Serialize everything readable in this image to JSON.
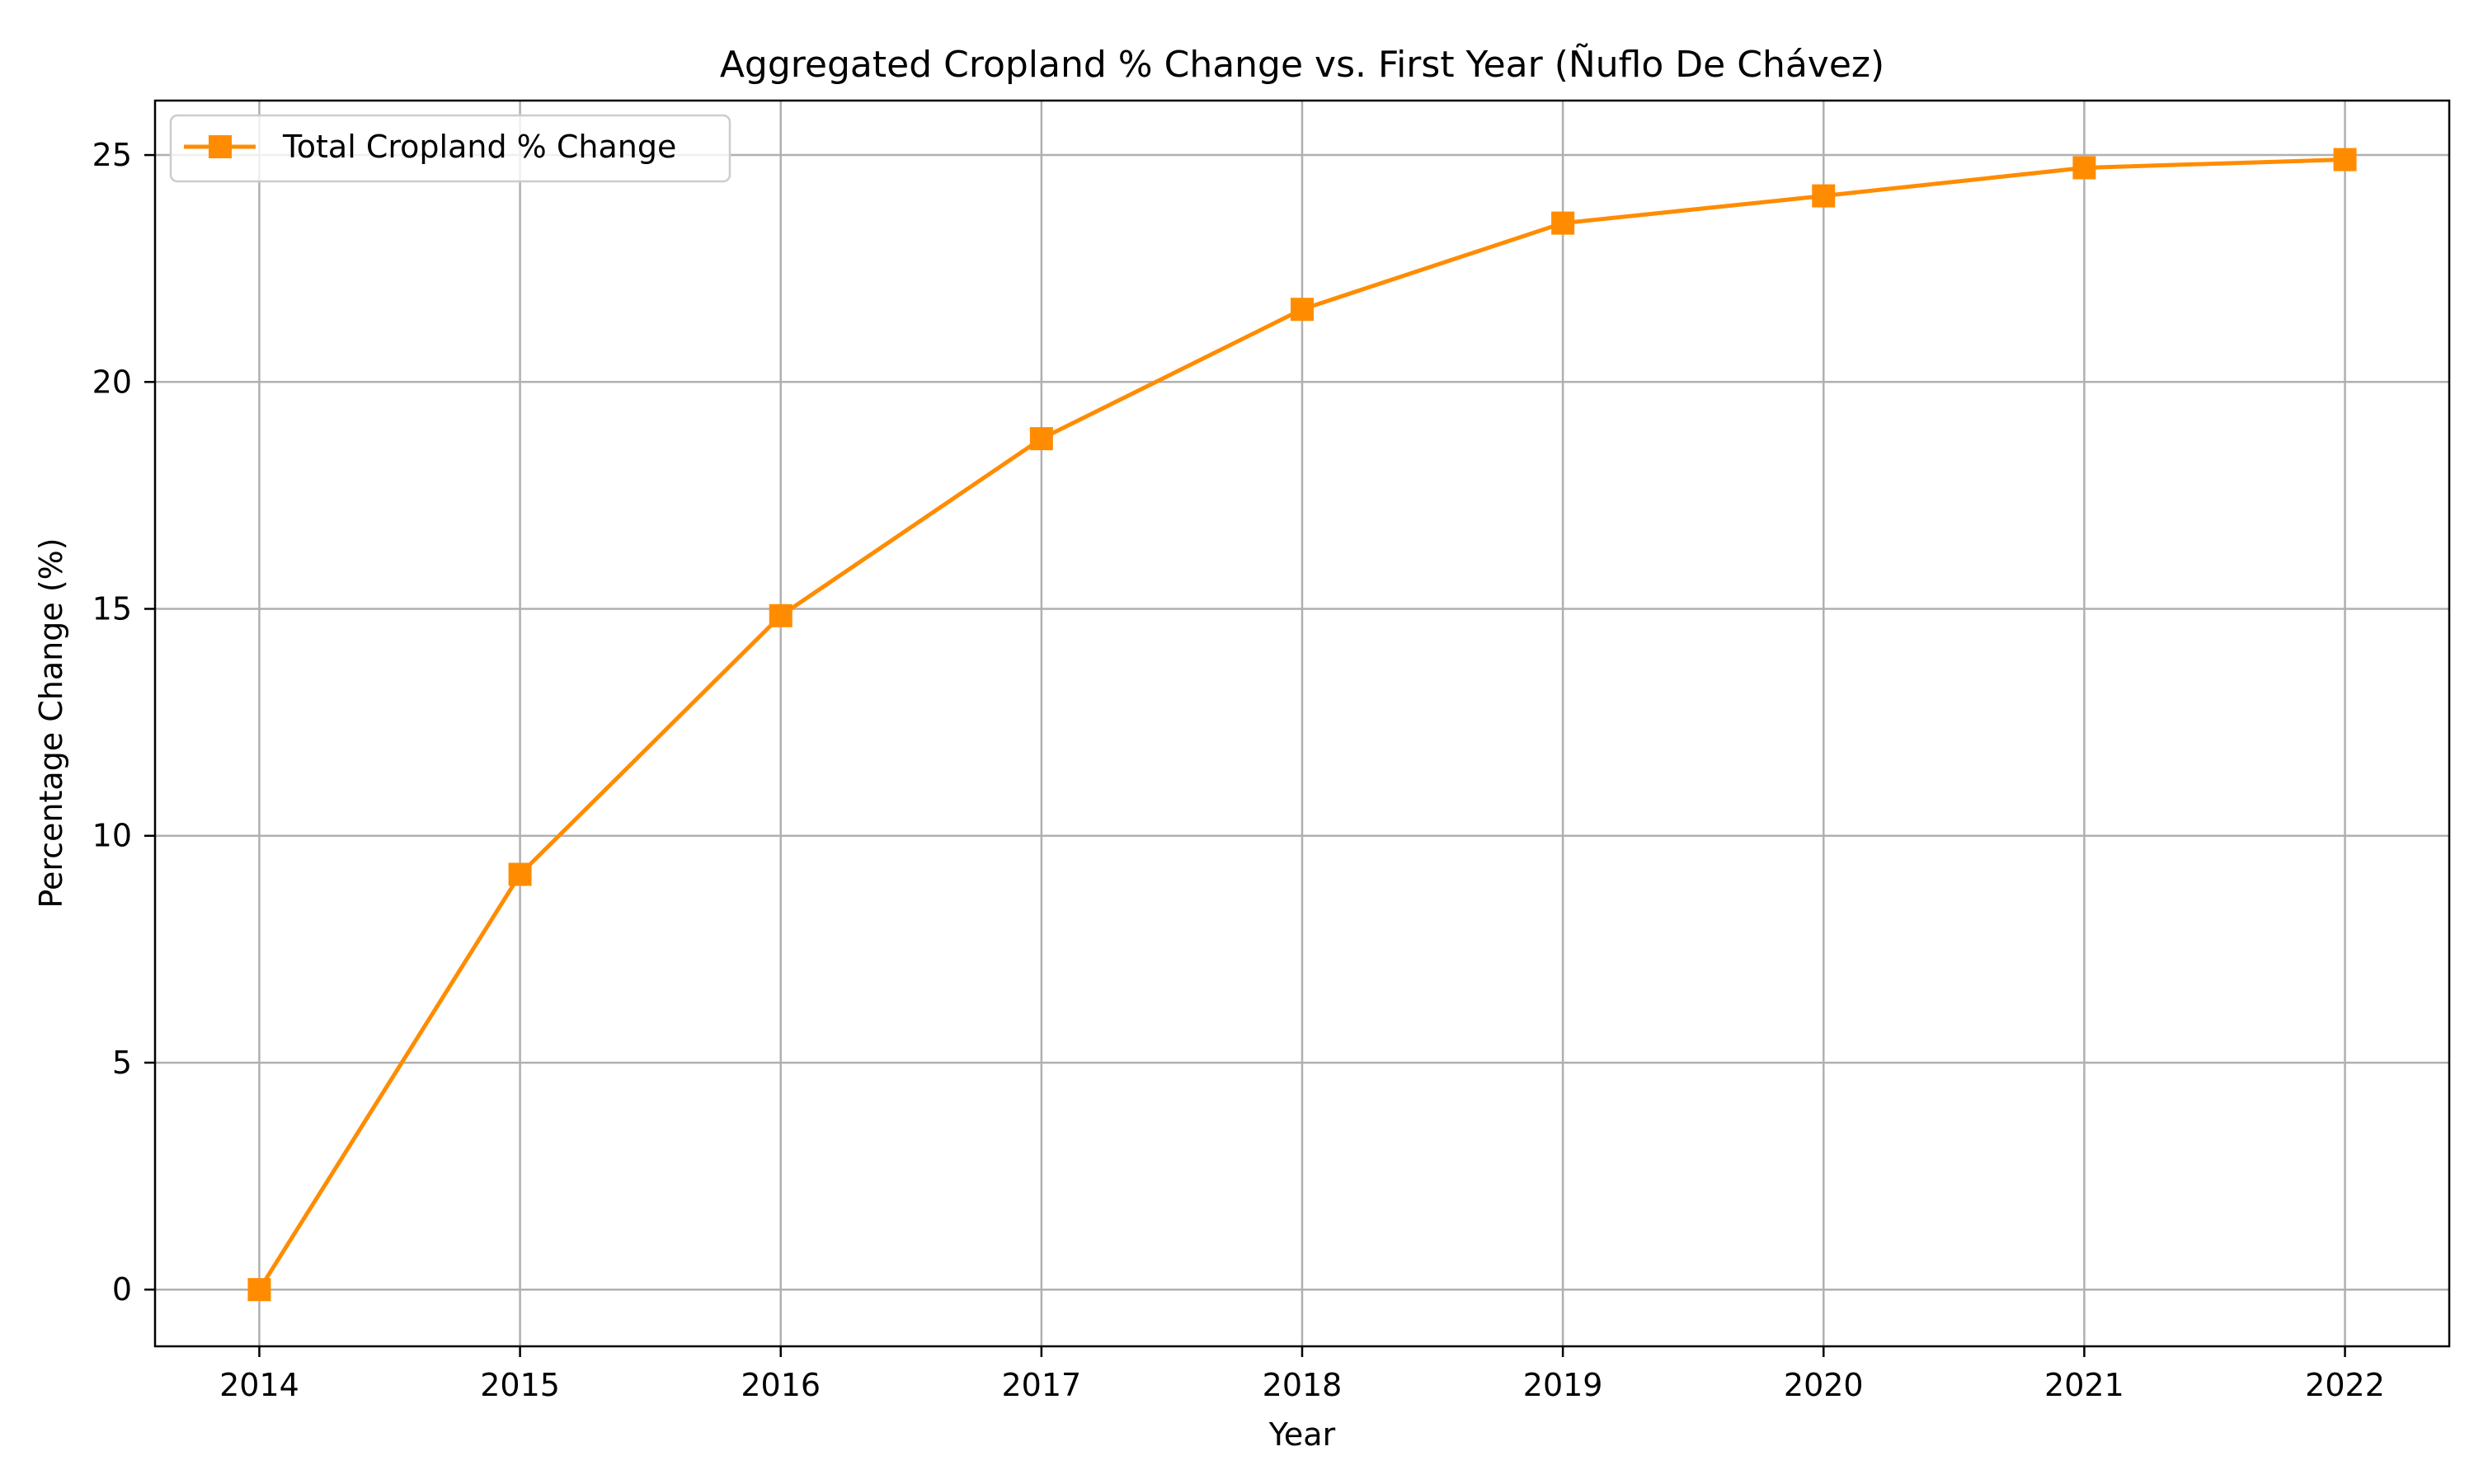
{
  "chart_data": {
    "type": "line",
    "title": "Aggregated Cropland % Change vs. First Year (Ñuflo De Chávez)",
    "xlabel": "Year",
    "ylabel": "Percentage Change (%)",
    "x": [
      2014,
      2015,
      2016,
      2017,
      2018,
      2019,
      2020,
      2021,
      2022
    ],
    "x_tick_labels": [
      "2014",
      "2015",
      "2016",
      "2017",
      "2018",
      "2019",
      "2020",
      "2021",
      "2022"
    ],
    "y_ticks": [
      0,
      5,
      10,
      15,
      20,
      25
    ],
    "y_tick_labels": [
      "0",
      "5",
      "10",
      "15",
      "20",
      "25"
    ],
    "xlim": [
      2013.6,
      2022.4
    ],
    "ylim": [
      -1.25,
      26.2
    ],
    "grid": true,
    "legend_position": "top-left",
    "series": [
      {
        "name": "Total Cropland % Change",
        "color": "#ff8c00",
        "marker": "square",
        "values": [
          0,
          9.15,
          14.85,
          18.75,
          21.6,
          23.5,
          24.1,
          24.72,
          24.9
        ]
      }
    ]
  }
}
